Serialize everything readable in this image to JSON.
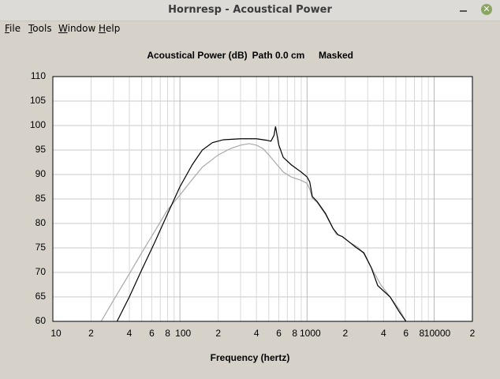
{
  "window": {
    "title": "Hornresp - Acoustical Power",
    "menu": [
      "File",
      "Tools",
      "Window",
      "Help"
    ]
  },
  "chart_data": {
    "type": "line",
    "title": "Acoustical Power (dB)",
    "annotations": [
      "Path 0.0 cm",
      "Masked"
    ],
    "x_label": "Frequency (hertz)",
    "xscale": "log",
    "grid": true,
    "xlim": [
      10,
      20000
    ],
    "ylim": [
      60,
      110
    ],
    "yticks": [
      60,
      65,
      70,
      75,
      80,
      85,
      90,
      95,
      100,
      105,
      110
    ],
    "xticks": [
      10,
      {
        "value": 20,
        "label": "2"
      },
      {
        "value": 40,
        "label": "4"
      },
      {
        "value": 60,
        "label": "6"
      },
      {
        "value": 80,
        "label": "8"
      },
      100,
      {
        "value": 200,
        "label": "2"
      },
      {
        "value": 400,
        "label": "4"
      },
      {
        "value": 600,
        "label": "6"
      },
      {
        "value": 800,
        "label": "8"
      },
      1000,
      {
        "value": 2000,
        "label": "2"
      },
      {
        "value": 4000,
        "label": "4"
      },
      {
        "value": 6000,
        "label": "6"
      },
      {
        "value": 8000,
        "label": "8"
      },
      10000,
      {
        "value": 20000,
        "label": "2"
      }
    ],
    "x_minor_ticks": [
      30,
      50,
      70,
      90,
      300,
      500,
      700,
      900,
      3000,
      5000,
      7000,
      9000
    ],
    "series": [
      {
        "color": "#a8a8a8",
        "x": [
          24,
          30,
          40,
          50,
          63,
          80,
          100,
          125,
          150,
          200,
          250,
          300,
          350,
          400,
          450,
          500,
          560,
          650,
          750,
          900,
          1000,
          1050,
          1100,
          1200,
          1400,
          1600,
          1700,
          1900,
          2200,
          2500,
          2800,
          3200,
          3800,
          4500,
          5300,
          6000
        ],
        "values": [
          60,
          64.3,
          69.7,
          74,
          78.3,
          82.8,
          85.8,
          89,
          91.5,
          94,
          95.3,
          96,
          96.3,
          96,
          95.3,
          94,
          92.5,
          90.5,
          89.5,
          88.8,
          88.2,
          87,
          85.2,
          84.3,
          81.8,
          79,
          77.8,
          77.3,
          76,
          75.2,
          73.8,
          71,
          67.5,
          65,
          62.5,
          60
        ]
      },
      {
        "color": "#000000",
        "x": [
          32,
          40,
          50,
          63,
          80,
          100,
          125,
          150,
          180,
          220,
          300,
          400,
          480,
          520,
          550,
          565,
          600,
          650,
          750,
          900,
          1000,
          1050,
          1100,
          1200,
          1400,
          1600,
          1750,
          1900,
          2200,
          2400,
          2800,
          3200,
          3600,
          4500,
          5300,
          6000
        ],
        "values": [
          60,
          65,
          70.5,
          76,
          82,
          87.5,
          92,
          95,
          96.5,
          97.1,
          97.3,
          97.3,
          97,
          96.8,
          98,
          99.8,
          96,
          93.5,
          92,
          90.5,
          89.5,
          88.5,
          85.5,
          84.5,
          82,
          79,
          77.7,
          77.3,
          76,
          75.2,
          74,
          71,
          67.3,
          65,
          62,
          60
        ]
      }
    ]
  }
}
